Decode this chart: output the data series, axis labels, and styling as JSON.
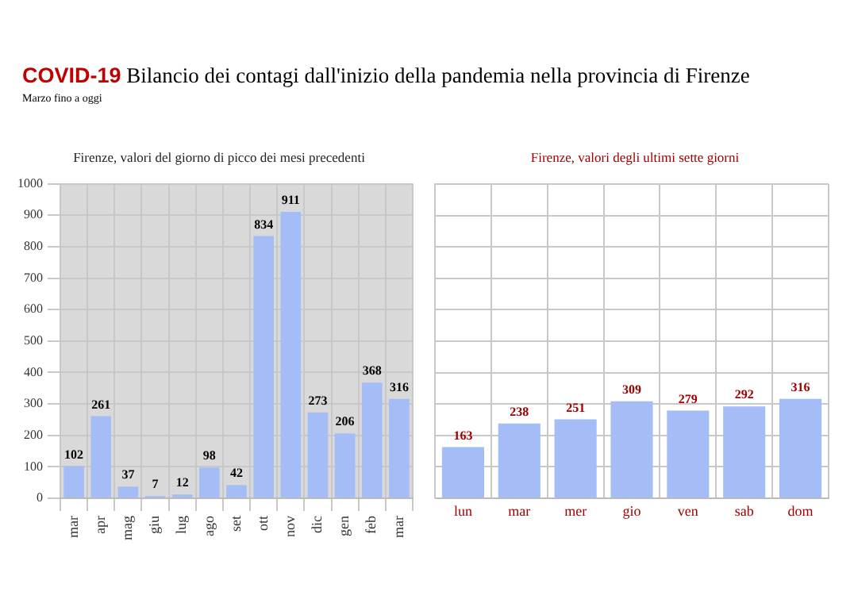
{
  "chart_data": [
    {
      "type": "other",
      "title": "COVID-19 Bilancio dei contagi dall'inizio della pandemia nella provincia di Firenze",
      "subtitle": "Marzo fino a oggi"
    },
    {
      "type": "bar",
      "title": "Firenze, valori del giorno di picco dei mesi precedenti",
      "categories": [
        "mar",
        "apr",
        "mag",
        "giu",
        "lug",
        "ago",
        "set",
        "ott",
        "nov",
        "dic",
        "gen",
        "feb",
        "mar"
      ],
      "values": [
        102,
        261,
        37,
        7,
        12,
        98,
        42,
        834,
        911,
        273,
        206,
        368,
        316
      ],
      "color": "#a4bdf7",
      "ylim": [
        0,
        1000
      ],
      "yticks": [
        0,
        100,
        200,
        300,
        400,
        500,
        600,
        700,
        800,
        900,
        1000
      ],
      "grid": true,
      "data_labels": true
    },
    {
      "type": "bar",
      "title": "Firenze, valori degli ultimi sette giorni",
      "categories": [
        "lun",
        "mar",
        "mer",
        "gio",
        "ven",
        "sab",
        "dom"
      ],
      "values": [
        163,
        238,
        251,
        309,
        279,
        292,
        316
      ],
      "color": "#a4bdf7",
      "ylim": [
        0,
        1000
      ],
      "yticks": [
        0,
        100,
        200,
        300,
        400,
        500,
        600,
        700,
        800,
        900,
        1000
      ],
      "grid": true,
      "data_labels": true,
      "tick_labels": "x"
    }
  ]
}
